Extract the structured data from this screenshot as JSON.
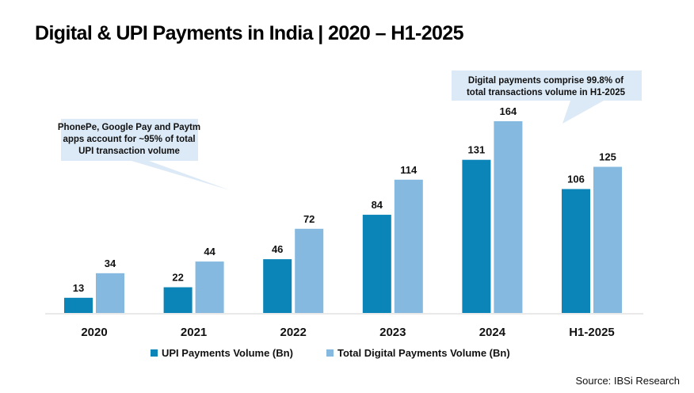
{
  "title": "Digital & UPI Payments in India | 2020 – H1-2025",
  "source": "Source: IBSi Research",
  "colors": {
    "upi": "#0b85b8",
    "total": "#86b9df",
    "callout_bg": "#dce9f6",
    "axis": "#e2e2e2"
  },
  "callouts": [
    {
      "lines": [
        "PhonePe, Google Pay and Paytm",
        "apps account for ~95% of total",
        "UPI transaction volume"
      ]
    },
    {
      "lines": [
        "Digital payments comprise 99.8% of",
        "total transactions volume in H1-2025"
      ]
    }
  ],
  "legend": [
    {
      "label": "UPI Payments Volume (Bn)"
    },
    {
      "label": "Total Digital Payments Volume (Bn)"
    }
  ],
  "chart_data": {
    "type": "bar",
    "title": "Digital & UPI Payments in India | 2020 – H1-2025",
    "xlabel": "",
    "ylabel": "",
    "categories": [
      "2020",
      "2021",
      "2022",
      "2023",
      "2024",
      "H1-2025"
    ],
    "series": [
      {
        "name": "UPI Payments Volume (Bn)",
        "values": [
          13,
          22,
          46,
          84,
          131,
          106
        ]
      },
      {
        "name": "Total Digital Payments Volume (Bn)",
        "values": [
          34,
          44,
          72,
          114,
          164,
          125
        ]
      }
    ],
    "ylim": [
      0,
      164
    ],
    "grid": false,
    "legend_position": "bottom",
    "data_labels": true
  }
}
